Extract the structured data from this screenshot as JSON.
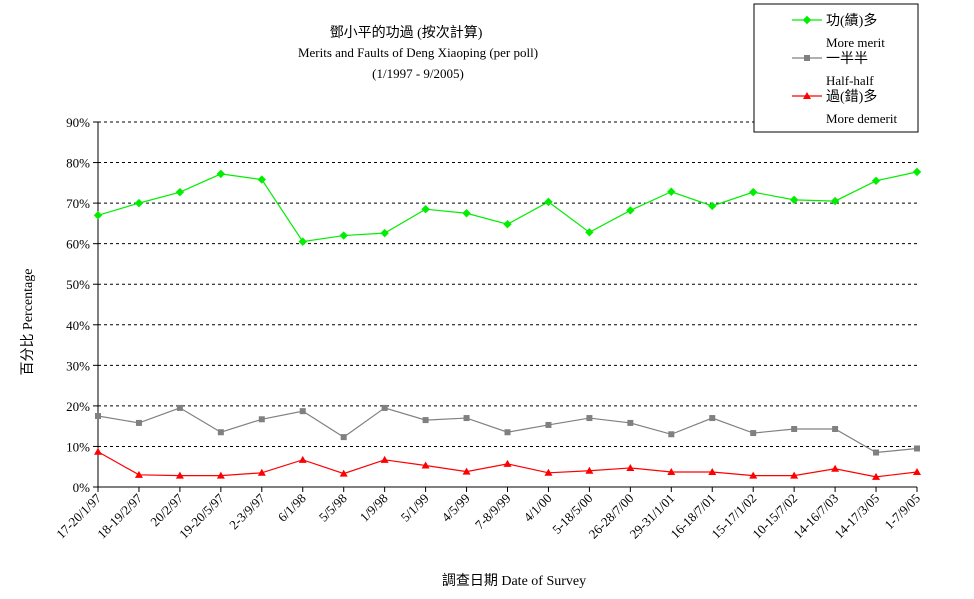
{
  "chart_data": {
    "type": "line",
    "title": "鄧小平的功過 (按次計算)",
    "subtitle": "Merits and Faults of Deng Xiaoping (per poll)",
    "period": "(1/1997 - 9/2005)",
    "xlabel": "調查日期 Date of Survey",
    "ylabel": "百分比 Percentage",
    "ylim": [
      0,
      90
    ],
    "yticks": [
      "0%",
      "10%",
      "20%",
      "30%",
      "40%",
      "50%",
      "60%",
      "70%",
      "80%",
      "90%"
    ],
    "grid": true,
    "legend_position": "top-right",
    "x": [
      "17-20/1/97",
      "18-19/2/97",
      "20/2/97",
      "19-20/5/97",
      "2-3/9/97",
      "6/1/98",
      "5/5/98",
      "1/9/98",
      "5/1/99",
      "4/5/99",
      "7-8/9/99",
      "4/1/00",
      "5-18/5/00",
      "26-28/7/00",
      "29-31/1/01",
      "16-18/7/01",
      "15-17/1/02",
      "10-15/7/02",
      "14-16/7/03",
      "14-17/3/05",
      "1-7/9/05"
    ],
    "series": [
      {
        "name": "功(績)多",
        "name_en": "More merit",
        "color": "#00ee00",
        "marker": "diamond",
        "values": [
          67,
          70,
          72.7,
          77.2,
          75.8,
          60.5,
          62,
          62.6,
          68.5,
          67.5,
          64.8,
          70.3,
          62.8,
          68.2,
          72.8,
          69.3,
          72.7,
          70.8,
          70.5,
          75.5,
          77.7
        ]
      },
      {
        "name": "一半半",
        "name_en": "Half-half",
        "color": "#808080",
        "marker": "square",
        "values": [
          17.5,
          15.8,
          19.5,
          13.5,
          16.7,
          18.7,
          12.3,
          19.5,
          16.5,
          17,
          13.5,
          15.3,
          17,
          15.8,
          13,
          17,
          13.3,
          14.3,
          14.3,
          8.5,
          9.5
        ]
      },
      {
        "name": "過(錯)多",
        "name_en": "More demerit",
        "color": "#ff0000",
        "marker": "triangle",
        "values": [
          8.7,
          3,
          2.8,
          2.8,
          3.5,
          6.7,
          3.3,
          6.7,
          5.3,
          3.8,
          5.7,
          3.5,
          4,
          4.7,
          3.7,
          3.7,
          2.8,
          2.8,
          4.5,
          2.5,
          3.7
        ]
      }
    ]
  }
}
